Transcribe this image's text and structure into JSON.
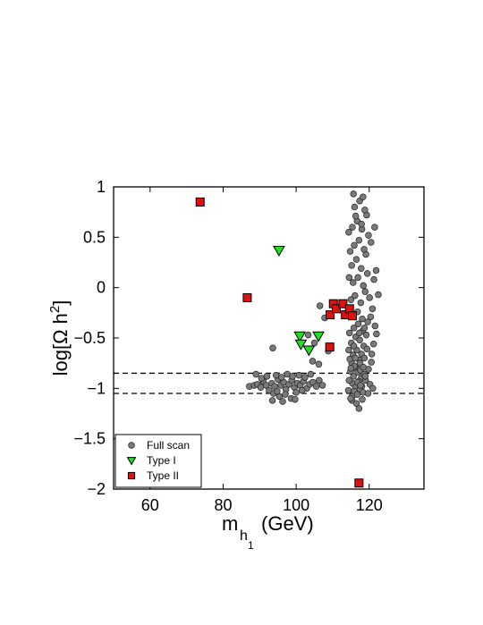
{
  "chart_data": {
    "type": "scatter",
    "xlabel": {
      "main": "m",
      "sub": "h",
      "subsub": "1",
      "unit": "(GeV)"
    },
    "ylabel": {
      "prefix": "log[Ω h",
      "sup": "2",
      "suffix": "]"
    },
    "xlim": [
      50,
      135
    ],
    "ylim": [
      -2,
      1
    ],
    "xticks": [
      60,
      80,
      100,
      120
    ],
    "yticks": [
      -2,
      -1.5,
      -1,
      -0.5,
      0,
      0.5,
      1
    ],
    "ytick_labels": [
      "−2",
      "−1.5",
      "−1",
      "−0.5",
      "0",
      "0.5",
      "1"
    ],
    "xtick_labels": [
      "60",
      "80",
      "100",
      "120"
    ],
    "hlines": [
      -0.85,
      -1.05
    ],
    "legend_position": "bottom-left",
    "legend": [
      {
        "label": "Full scan",
        "marker": "circle",
        "color": "#7a7a7a"
      },
      {
        "label": "Type I",
        "marker": "triangle-down",
        "color": "#22dd22"
      },
      {
        "label": "Type II",
        "marker": "square",
        "color": "#dd1111"
      }
    ],
    "series": [
      {
        "name": "Full scan",
        "marker": "circle",
        "color": "#7a7a7a",
        "points": [
          [
            87.2,
            -0.98
          ],
          [
            88.5,
            -0.97
          ],
          [
            89.4,
            -0.96
          ],
          [
            90.3,
            -0.99
          ],
          [
            91.0,
            -0.93
          ],
          [
            91.8,
            -0.97
          ],
          [
            92.6,
            -1.02
          ],
          [
            93.3,
            -0.95
          ],
          [
            94.1,
            -0.98
          ],
          [
            95.0,
            -0.91
          ],
          [
            95.8,
            -0.97
          ],
          [
            96.6,
            -0.94
          ],
          [
            97.2,
            -1.01
          ],
          [
            98.0,
            -0.96
          ],
          [
            98.8,
            -0.92
          ],
          [
            99.5,
            -0.99
          ],
          [
            100.3,
            -0.95
          ],
          [
            101.1,
            -0.97
          ],
          [
            102.0,
            -0.93
          ],
          [
            102.9,
            -1.0
          ],
          [
            103.7,
            -0.96
          ],
          [
            104.6,
            -0.94
          ],
          [
            105.5,
            -0.98
          ],
          [
            106.3,
            -0.92
          ],
          [
            107.2,
            -0.97
          ],
          [
            89.0,
            -0.86
          ],
          [
            90.5,
            -0.9
          ],
          [
            92.0,
            -0.88
          ],
          [
            94.5,
            -0.87
          ],
          [
            96.0,
            -0.89
          ],
          [
            97.6,
            -0.86
          ],
          [
            99.0,
            -0.88
          ],
          [
            100.8,
            -0.87
          ],
          [
            102.4,
            -0.89
          ],
          [
            104.0,
            -0.86
          ],
          [
            93.8,
            -1.05
          ],
          [
            95.4,
            -1.08
          ],
          [
            97.0,
            -1.06
          ],
          [
            98.6,
            -1.1
          ],
          [
            100.0,
            -1.04
          ],
          [
            93.5,
            -1.12
          ],
          [
            96.3,
            -1.13
          ],
          [
            99.7,
            -1.11
          ],
          [
            94.8,
            -1.03
          ],
          [
            101.6,
            -1.02
          ],
          [
            93.6,
            -0.6
          ],
          [
            104.5,
            -0.73
          ],
          [
            106.2,
            -0.76
          ],
          [
            105.0,
            -0.55
          ],
          [
            107.8,
            -0.3
          ],
          [
            106.5,
            -0.18
          ],
          [
            108.8,
            -0.63
          ],
          [
            103.3,
            -0.47
          ],
          [
            115.2,
            -0.75
          ],
          [
            116.4,
            -0.8
          ],
          [
            117.3,
            -0.72
          ],
          [
            115.7,
            -0.88
          ],
          [
            116.9,
            -0.84
          ],
          [
            117.8,
            -0.9
          ],
          [
            115.4,
            -0.95
          ],
          [
            116.2,
            -0.99
          ],
          [
            117.1,
            -0.93
          ],
          [
            118.0,
            -0.98
          ],
          [
            115.9,
            -1.03
          ],
          [
            116.7,
            -1.06
          ],
          [
            117.5,
            -1.01
          ],
          [
            118.3,
            -1.04
          ],
          [
            115.3,
            -1.08
          ],
          [
            116.0,
            -0.78
          ],
          [
            117.6,
            -0.82
          ],
          [
            118.6,
            -0.86
          ],
          [
            114.9,
            -0.83
          ],
          [
            119.0,
            -0.92
          ],
          [
            115.6,
            -0.67
          ],
          [
            116.6,
            -0.62
          ],
          [
            117.9,
            -0.66
          ],
          [
            118.7,
            -0.7
          ],
          [
            114.7,
            -0.71
          ],
          [
            115.1,
            -0.55
          ],
          [
            116.3,
            -0.49
          ],
          [
            117.4,
            -0.52
          ],
          [
            118.5,
            -0.58
          ],
          [
            119.4,
            -0.61
          ],
          [
            115.8,
            -0.4
          ],
          [
            117.0,
            -0.36
          ],
          [
            118.2,
            -0.43
          ],
          [
            119.2,
            -0.47
          ],
          [
            114.6,
            -0.45
          ],
          [
            115.5,
            -0.28
          ],
          [
            116.8,
            -0.24
          ],
          [
            118.1,
            -0.31
          ],
          [
            119.6,
            -0.34
          ],
          [
            120.4,
            -0.29
          ],
          [
            115.0,
            -0.12
          ],
          [
            116.1,
            -0.08
          ],
          [
            117.7,
            -0.15
          ],
          [
            118.9,
            -0.04
          ],
          [
            120.1,
            -0.1
          ],
          [
            115.6,
            0.05
          ],
          [
            116.9,
            0.1
          ],
          [
            118.4,
            0.02
          ],
          [
            119.5,
            0.14
          ],
          [
            121.3,
            0.08
          ],
          [
            115.2,
            0.22
          ],
          [
            116.5,
            0.28
          ],
          [
            117.8,
            0.19
          ],
          [
            119.1,
            0.33
          ],
          [
            121.9,
            0.17
          ],
          [
            115.9,
            0.42
          ],
          [
            117.2,
            0.47
          ],
          [
            118.6,
            0.38
          ],
          [
            119.8,
            0.52
          ],
          [
            114.8,
            0.36
          ],
          [
            115.4,
            0.6
          ],
          [
            116.7,
            0.66
          ],
          [
            118.0,
            0.58
          ],
          [
            119.3,
            0.72
          ],
          [
            116.0,
            0.8
          ],
          [
            117.4,
            0.86
          ],
          [
            118.8,
            0.77
          ],
          [
            115.7,
            0.93
          ],
          [
            116.3,
            0.71
          ],
          [
            118.3,
            0.9
          ],
          [
            114.5,
            -0.92
          ],
          [
            119.8,
            -0.81
          ],
          [
            120.6,
            -0.74
          ],
          [
            121.2,
            -0.56
          ],
          [
            122.0,
            -0.46
          ],
          [
            120.9,
            -0.21
          ],
          [
            121.6,
            -0.38
          ],
          [
            115.3,
            -1.12
          ],
          [
            116.5,
            -1.15
          ],
          [
            117.2,
            -1.2
          ],
          [
            118.1,
            -1.11
          ],
          [
            119.7,
            -1.05
          ],
          [
            114.3,
            -1.02
          ],
          [
            114.9,
            -1.1
          ],
          [
            120.2,
            -0.96
          ],
          [
            121.0,
            -1.0
          ],
          [
            114.4,
            -0.62
          ],
          [
            120.7,
            -0.66
          ],
          [
            114.2,
            -0.28
          ],
          [
            122.5,
            -0.07
          ],
          [
            114.5,
            0.1
          ],
          [
            120.5,
            0.45
          ],
          [
            121.5,
            0.6
          ],
          [
            114.4,
            0.55
          ],
          [
            117.9,
            0.63
          ],
          [
            116.2,
            -0.7
          ],
          [
            117.5,
            -0.75
          ],
          [
            118.4,
            -0.79
          ],
          [
            116.8,
            -0.94
          ],
          [
            117.6,
            -0.97
          ],
          [
            115.0,
            -0.8
          ],
          [
            118.9,
            -0.88
          ],
          [
            115.8,
            -0.58
          ],
          [
            117.3,
            -0.45
          ],
          [
            118.7,
            -0.4
          ]
        ]
      },
      {
        "name": "Type I",
        "marker": "triangle-down",
        "color": "#22dd22",
        "points": [
          [
            95.3,
            0.37
          ],
          [
            101.0,
            -0.48
          ],
          [
            101.3,
            -0.56
          ],
          [
            103.5,
            -0.62
          ],
          [
            106.1,
            -0.48
          ]
        ]
      },
      {
        "name": "Type II",
        "marker": "square",
        "color": "#dd1111",
        "points": [
          [
            73.7,
            0.85
          ],
          [
            86.6,
            -0.1
          ],
          [
            109.3,
            -0.27
          ],
          [
            110.2,
            -0.16
          ],
          [
            111.0,
            -0.21
          ],
          [
            112.8,
            -0.16
          ],
          [
            113.5,
            -0.27
          ],
          [
            114.6,
            -0.21
          ],
          [
            115.4,
            -0.28
          ],
          [
            109.2,
            -0.59
          ],
          [
            117.2,
            -1.94
          ]
        ]
      }
    ]
  }
}
